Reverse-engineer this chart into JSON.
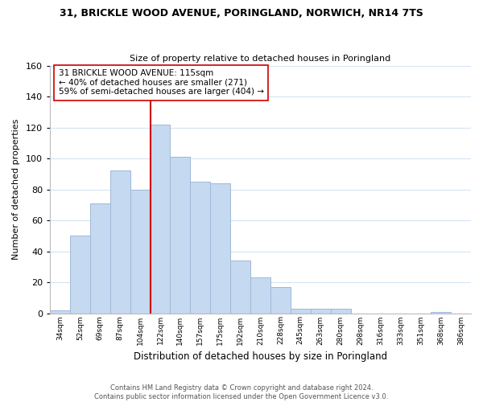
{
  "title_line1": "31, BRICKLE WOOD AVENUE, PORINGLAND, NORWICH, NR14 7TS",
  "title_line2": "Size of property relative to detached houses in Poringland",
  "xlabel": "Distribution of detached houses by size in Poringland",
  "ylabel": "Number of detached properties",
  "bar_labels": [
    "34sqm",
    "52sqm",
    "69sqm",
    "87sqm",
    "104sqm",
    "122sqm",
    "140sqm",
    "157sqm",
    "175sqm",
    "192sqm",
    "210sqm",
    "228sqm",
    "245sqm",
    "263sqm",
    "280sqm",
    "298sqm",
    "316sqm",
    "333sqm",
    "351sqm",
    "368sqm",
    "386sqm"
  ],
  "bar_values": [
    2,
    50,
    71,
    92,
    80,
    122,
    101,
    85,
    84,
    34,
    23,
    17,
    3,
    3,
    3,
    0,
    0,
    0,
    0,
    1,
    0
  ],
  "bin_edges": [
    25.5,
    43,
    60.5,
    78,
    95.5,
    113,
    130.5,
    148,
    165.5,
    183,
    200.5,
    218,
    235.5,
    253,
    270.5,
    288,
    305.5,
    323,
    340.5,
    358,
    375.5,
    393
  ],
  "bar_color": "#c5d9f0",
  "bar_edge_color": "#a0b8d8",
  "vline_pos": 113,
  "vline_color": "#cc0000",
  "annotation_title": "31 BRICKLE WOOD AVENUE: 115sqm",
  "annotation_line2": "← 40% of detached houses are smaller (271)",
  "annotation_line3": "59% of semi-detached houses are larger (404) →",
  "annotation_box_color": "#ffffff",
  "annotation_box_edgecolor": "#cc0000",
  "ylim": [
    0,
    160
  ],
  "yticks": [
    0,
    20,
    40,
    60,
    80,
    100,
    120,
    140,
    160
  ],
  "footer_line1": "Contains HM Land Registry data © Crown copyright and database right 2024.",
  "footer_line2": "Contains public sector information licensed under the Open Government Licence v3.0.",
  "bg_color": "#ffffff",
  "grid_color": "#d4e4f5"
}
